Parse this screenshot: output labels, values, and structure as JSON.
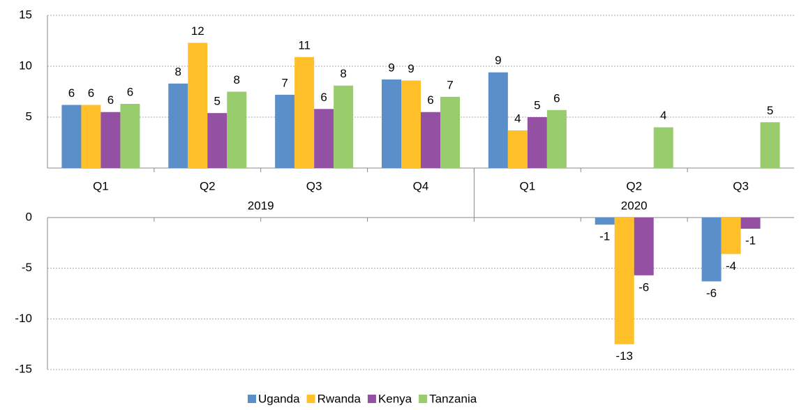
{
  "chart_data": {
    "type": "bar",
    "groups": [
      {
        "name": "2019",
        "categories": [
          "Q1",
          "Q2",
          "Q3",
          "Q4"
        ]
      },
      {
        "name": "2020",
        "categories": [
          "Q1",
          "Q2",
          "Q3"
        ]
      }
    ],
    "series": [
      {
        "name": "Uganda",
        "color": "#5b8fc9",
        "values": [
          6.2,
          8.3,
          7.2,
          8.7,
          9.4,
          -0.7,
          -6.3
        ],
        "value_labels": [
          "6",
          "8",
          "7",
          "9",
          "9",
          "-1",
          "-6"
        ]
      },
      {
        "name": "Rwanda",
        "color": "#ffc02a",
        "values": [
          6.2,
          12.3,
          10.9,
          8.6,
          3.7,
          -12.5,
          -3.6
        ],
        "value_labels": [
          "6",
          "12",
          "11",
          "9",
          "4",
          "-13",
          "-4"
        ]
      },
      {
        "name": "Kenya",
        "color": "#9451a4",
        "values": [
          5.5,
          5.4,
          5.8,
          5.5,
          5.0,
          -5.7,
          -1.1
        ],
        "value_labels": [
          "6",
          "5",
          "6",
          "6",
          "5",
          "-6",
          "-1"
        ]
      },
      {
        "name": "Tanzania",
        "color": "#98cc6c",
        "values": [
          6.3,
          7.5,
          8.1,
          7.0,
          5.7,
          4.0,
          4.5
        ],
        "value_labels": [
          "6",
          "8",
          "8",
          "7",
          "6",
          "4",
          "5"
        ]
      }
    ],
    "ylim": [
      0,
      15
    ],
    "yticks": [
      5,
      10,
      15
    ],
    "ylim_lower": [
      -15,
      0
    ],
    "yticks_lower": [
      0,
      -5,
      -10,
      -15
    ],
    "negative_label_color": "#e03030",
    "grid": true,
    "legend": "bottom"
  }
}
